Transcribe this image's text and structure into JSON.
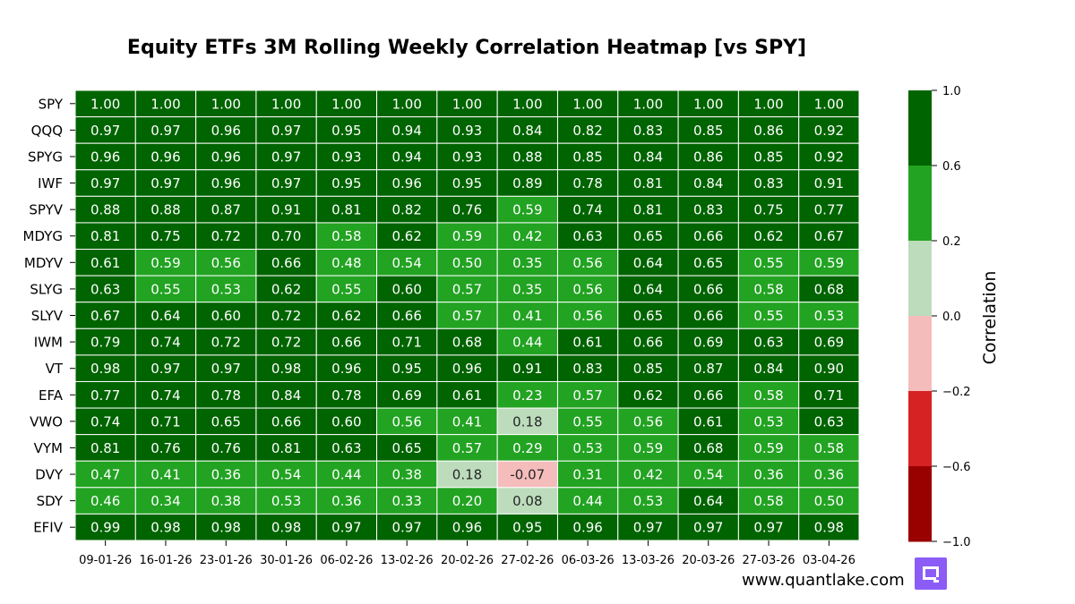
{
  "chart_data": {
    "type": "heatmap",
    "title": "Equity ETFs 3M Rolling Weekly Correlation Heatmap [vs SPY]",
    "rows": [
      "SPY",
      "QQQ",
      "SPYG",
      "IWF",
      "SPYV",
      "MDYG",
      "MDYV",
      "SLYG",
      "SLYV",
      "IWM",
      "VT",
      "EFA",
      "VWO",
      "VYM",
      "DVY",
      "SDY",
      "EFIV"
    ],
    "columns": [
      "09-01-26",
      "16-01-26",
      "23-01-26",
      "30-01-26",
      "06-02-26",
      "13-02-26",
      "20-02-26",
      "27-02-26",
      "06-03-26",
      "13-03-26",
      "20-03-26",
      "27-03-26",
      "03-04-26"
    ],
    "values": [
      [
        1.0,
        1.0,
        1.0,
        1.0,
        1.0,
        1.0,
        1.0,
        1.0,
        1.0,
        1.0,
        1.0,
        1.0,
        1.0
      ],
      [
        0.97,
        0.97,
        0.96,
        0.97,
        0.95,
        0.94,
        0.93,
        0.84,
        0.82,
        0.83,
        0.85,
        0.86,
        0.92
      ],
      [
        0.96,
        0.96,
        0.96,
        0.97,
        0.93,
        0.94,
        0.93,
        0.88,
        0.85,
        0.84,
        0.86,
        0.85,
        0.92
      ],
      [
        0.97,
        0.97,
        0.96,
        0.97,
        0.95,
        0.96,
        0.95,
        0.89,
        0.78,
        0.81,
        0.84,
        0.83,
        0.91
      ],
      [
        0.88,
        0.88,
        0.87,
        0.91,
        0.81,
        0.82,
        0.76,
        0.59,
        0.74,
        0.81,
        0.83,
        0.75,
        0.77
      ],
      [
        0.81,
        0.75,
        0.72,
        0.7,
        0.58,
        0.62,
        0.59,
        0.42,
        0.63,
        0.65,
        0.66,
        0.62,
        0.67
      ],
      [
        0.61,
        0.59,
        0.56,
        0.66,
        0.48,
        0.54,
        0.5,
        0.35,
        0.56,
        0.64,
        0.65,
        0.55,
        0.59
      ],
      [
        0.63,
        0.55,
        0.53,
        0.62,
        0.55,
        0.6,
        0.57,
        0.35,
        0.56,
        0.64,
        0.66,
        0.58,
        0.68
      ],
      [
        0.67,
        0.64,
        0.6,
        0.72,
        0.62,
        0.66,
        0.57,
        0.41,
        0.56,
        0.65,
        0.66,
        0.55,
        0.53
      ],
      [
        0.79,
        0.74,
        0.72,
        0.72,
        0.66,
        0.71,
        0.68,
        0.44,
        0.61,
        0.66,
        0.69,
        0.63,
        0.69
      ],
      [
        0.98,
        0.97,
        0.97,
        0.98,
        0.96,
        0.95,
        0.96,
        0.91,
        0.83,
        0.85,
        0.87,
        0.84,
        0.9
      ],
      [
        0.77,
        0.74,
        0.78,
        0.84,
        0.78,
        0.69,
        0.61,
        0.23,
        0.57,
        0.62,
        0.66,
        0.58,
        0.71
      ],
      [
        0.74,
        0.71,
        0.65,
        0.66,
        0.6,
        0.56,
        0.41,
        0.18,
        0.55,
        0.56,
        0.61,
        0.53,
        0.63
      ],
      [
        0.81,
        0.76,
        0.76,
        0.81,
        0.63,
        0.65,
        0.57,
        0.29,
        0.53,
        0.59,
        0.68,
        0.59,
        0.58
      ],
      [
        0.47,
        0.41,
        0.36,
        0.54,
        0.44,
        0.38,
        0.18,
        -0.07,
        0.31,
        0.42,
        0.54,
        0.36,
        0.36
      ],
      [
        0.46,
        0.34,
        0.38,
        0.53,
        0.36,
        0.33,
        0.2,
        0.08,
        0.44,
        0.53,
        0.64,
        0.58,
        0.5
      ],
      [
        0.99,
        0.98,
        0.98,
        0.98,
        0.97,
        0.97,
        0.96,
        0.95,
        0.96,
        0.97,
        0.97,
        0.97,
        0.98
      ]
    ],
    "colorbar": {
      "label": "Correlation",
      "range": [
        -1.0,
        1.0
      ],
      "bounds": [
        -1.0,
        -0.6,
        -0.2,
        0.0,
        0.2,
        0.6,
        1.0
      ],
      "colors": [
        "#990000",
        "#d62222",
        "#f5bcbc",
        "#bcdcbc",
        "#22a322",
        "#006400"
      ],
      "ticks": [
        "1.0",
        "0.6",
        "0.2",
        "0.0",
        "−0.2",
        "−0.6",
        "−1.0"
      ],
      "tick_values": [
        1.0,
        0.6,
        0.2,
        0.0,
        -0.2,
        -0.6,
        -1.0
      ]
    },
    "text_colors": {
      "dark_bg": "#ffffff",
      "light_bg": "#262626"
    }
  },
  "watermark": "www.quantlake.com",
  "logo_icon": "quantlake-logo-icon"
}
